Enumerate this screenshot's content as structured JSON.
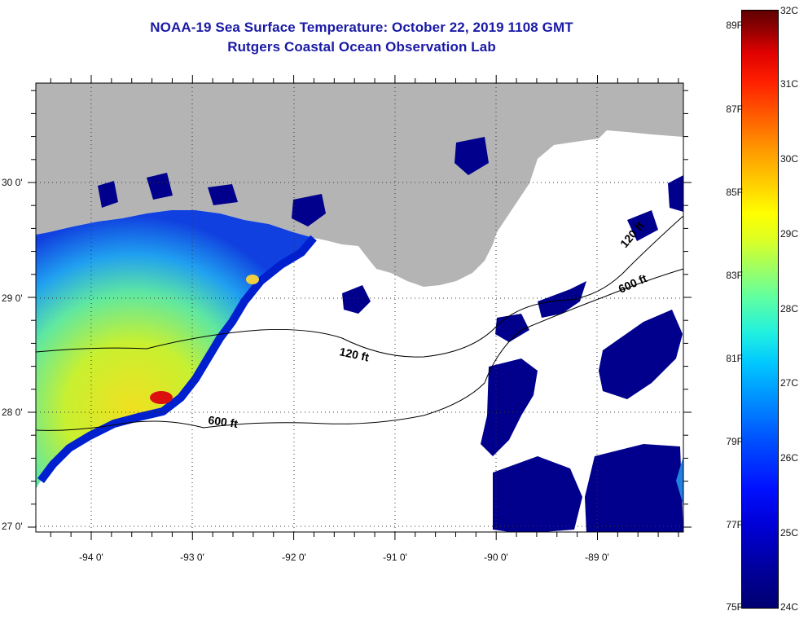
{
  "title": {
    "line1": "NOAA-19 Sea Surface Temperature:  October 22, 2019 1108 GMT",
    "line2": "Rutgers Coastal Ocean Observation Lab"
  },
  "map": {
    "latitude_labels": [
      "30 0'",
      "29 0'",
      "28 0'",
      "27 0'"
    ],
    "longitude_labels": [
      "-94 0'",
      "-93 0'",
      "-92 0'",
      "-91 0'",
      "-90 0'",
      "-89 0'"
    ],
    "contours": [
      "120 ft",
      "600 ft",
      "600 ft",
      "120 ft"
    ],
    "colors": {
      "land": "#b4b4b4",
      "cloud": "#ffffff",
      "cold_water": "#000090",
      "warm_water": "#e8e820",
      "hot_spot": "#cc0000"
    }
  },
  "colorbar": {
    "fahrenheit_labels": [
      "89F",
      "87F",
      "85F",
      "83F",
      "81F",
      "79F",
      "77F",
      "75F"
    ],
    "celsius_labels": [
      "32C",
      "31C",
      "30C",
      "29C",
      "28C",
      "27C",
      "26C",
      "25C",
      "24C"
    ]
  }
}
